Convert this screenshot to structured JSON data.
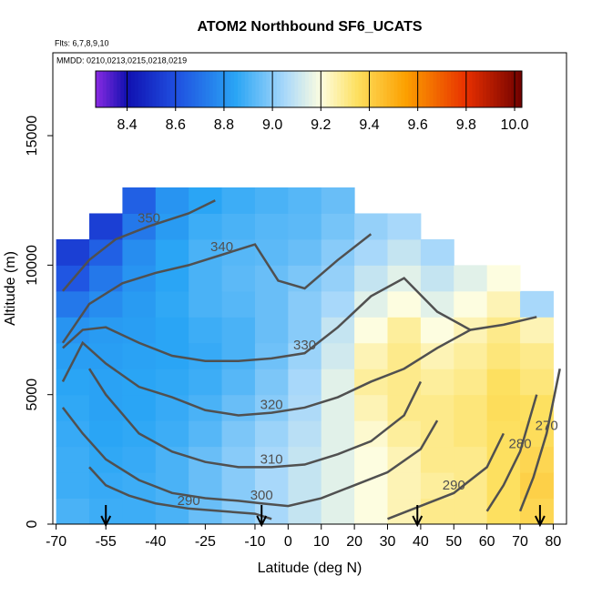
{
  "chart_data": {
    "type": "heatmap",
    "title": "ATOM2 Northbound SF6_UCATS",
    "annotations": [
      "Flts: 6,7,8,9,10",
      "MMDD: 0210,0213,0215,0218,0219"
    ],
    "x_label": "Latitude (deg N)",
    "y_label": "Altitude (m)",
    "xlim": [
      -71,
      84
    ],
    "ylim": [
      0,
      18200
    ],
    "xticks": [
      -70,
      -55,
      -40,
      -25,
      -10,
      0,
      10,
      20,
      30,
      40,
      50,
      60,
      70,
      80
    ],
    "yticks": [
      0,
      5000,
      10000,
      15000
    ],
    "x": [
      -65,
      -55,
      -45,
      -35,
      -25,
      -15,
      -5,
      5,
      15,
      25,
      35,
      45,
      55,
      65,
      75
    ],
    "y": [
      500,
      1500,
      2500,
      3500,
      4500,
      5500,
      6500,
      7500,
      8500,
      9500,
      10500,
      11500,
      12500
    ],
    "z": [
      [
        8.9,
        8.88,
        8.88,
        8.9,
        8.95,
        9.0,
        9.05,
        9.1,
        9.15,
        9.2,
        9.25,
        9.3,
        9.3,
        9.35,
        9.38
      ],
      [
        8.88,
        8.87,
        8.88,
        8.9,
        8.95,
        9.0,
        9.05,
        9.1,
        9.15,
        9.2,
        9.25,
        9.28,
        9.3,
        9.35,
        9.4
      ],
      [
        8.88,
        8.86,
        8.87,
        8.9,
        8.95,
        9.0,
        9.05,
        9.1,
        9.15,
        9.2,
        9.25,
        9.3,
        9.3,
        9.35,
        9.38
      ],
      [
        8.87,
        8.85,
        8.86,
        8.88,
        8.92,
        8.98,
        9.03,
        9.08,
        9.15,
        9.22,
        9.28,
        9.3,
        9.32,
        9.35,
        9.36
      ],
      [
        8.86,
        8.84,
        8.85,
        8.87,
        8.9,
        8.95,
        9.0,
        9.06,
        9.15,
        9.25,
        9.3,
        9.3,
        9.32,
        9.36,
        9.35
      ],
      [
        8.85,
        8.84,
        8.85,
        8.86,
        8.88,
        8.92,
        8.98,
        9.05,
        9.15,
        9.28,
        9.3,
        9.28,
        9.3,
        9.35,
        9.32
      ],
      [
        8.83,
        8.83,
        8.84,
        8.85,
        8.87,
        8.9,
        8.96,
        9.03,
        9.12,
        9.25,
        9.3,
        9.25,
        9.28,
        9.32,
        9.3
      ],
      [
        8.8,
        8.82,
        8.83,
        8.85,
        8.88,
        8.9,
        8.95,
        9.0,
        9.1,
        9.2,
        9.28,
        9.2,
        9.25,
        9.3,
        9.25
      ],
      [
        8.72,
        8.78,
        8.82,
        8.86,
        8.9,
        8.92,
        8.95,
        9.0,
        9.05,
        9.15,
        9.2,
        9.15,
        9.2,
        9.25,
        9.05
      ],
      [
        8.62,
        8.72,
        8.8,
        8.85,
        8.9,
        8.93,
        8.95,
        8.98,
        9.02,
        9.1,
        9.15,
        9.1,
        9.15,
        9.2,
        null
      ],
      [
        8.55,
        8.65,
        8.78,
        8.85,
        8.9,
        8.92,
        8.93,
        8.95,
        9.0,
        9.05,
        9.1,
        9.05,
        null,
        null,
        null
      ],
      [
        null,
        8.55,
        8.72,
        8.82,
        8.88,
        8.9,
        8.92,
        8.93,
        8.97,
        9.02,
        9.05,
        null,
        null,
        null,
        null
      ],
      [
        null,
        null,
        8.65,
        8.8,
        8.85,
        8.88,
        8.9,
        8.92,
        8.95,
        null,
        null,
        null,
        null,
        null,
        null
      ]
    ],
    "colorlim": [
      8.27,
      10.03
    ],
    "colorbar_ticks": [
      8.4,
      8.6,
      8.8,
      9.0,
      9.2,
      9.4,
      9.6,
      9.8,
      10.0
    ],
    "colorbar_tick_labels": [
      "8.4",
      "8.6",
      "8.8",
      "9.0",
      "9.2",
      "9.4",
      "9.6",
      "9.8",
      "10.0"
    ],
    "colorscale": [
      [
        8.27,
        "#8a2be2"
      ],
      [
        8.4,
        "#1010b0"
      ],
      [
        8.6,
        "#1f4fe0"
      ],
      [
        8.85,
        "#2aa5f5"
      ],
      [
        9.05,
        "#a8d8fa"
      ],
      [
        9.2,
        "#fdfde0"
      ],
      [
        9.35,
        "#fde060"
      ],
      [
        9.55,
        "#fca000"
      ],
      [
        9.8,
        "#e83000"
      ],
      [
        10.03,
        "#700000"
      ]
    ],
    "contour_color": "#505050",
    "contours": [
      {
        "level": 350,
        "x": [
          -68,
          -60,
          -52,
          -42,
          -30,
          -22
        ],
        "y": [
          9000,
          10200,
          11000,
          11500,
          12000,
          12500
        ]
      },
      {
        "level": 340,
        "x": [
          -68,
          -60,
          -50,
          -40,
          -30,
          -20,
          -10,
          -3,
          5,
          15,
          25
        ],
        "y": [
          7000,
          8500,
          9300,
          9700,
          10000,
          10400,
          10800,
          9400,
          9100,
          10200,
          11200
        ]
      },
      {
        "level": 330,
        "x": [
          -68,
          -62,
          -55,
          -45,
          -35,
          -25,
          -15,
          -5,
          5,
          15,
          25,
          35,
          45,
          55,
          65,
          75
        ],
        "y": [
          6800,
          7500,
          7600,
          7000,
          6500,
          6300,
          6300,
          6400,
          6600,
          7600,
          8800,
          9500,
          8200,
          7500,
          7700,
          8000
        ]
      },
      {
        "level": 320,
        "x": [
          -68,
          -62,
          -55,
          -45,
          -35,
          -25,
          -15,
          -5,
          5,
          15,
          25,
          35,
          45,
          55
        ],
        "y": [
          5500,
          7000,
          6200,
          5300,
          4900,
          4400,
          4200,
          4300,
          4500,
          4900,
          5500,
          6000,
          6800,
          7500
        ]
      },
      {
        "level": 310,
        "x": [
          -60,
          -55,
          -45,
          -35,
          -25,
          -15,
          -5,
          5,
          15,
          25,
          35,
          40
        ],
        "y": [
          6000,
          5000,
          3500,
          2800,
          2400,
          2200,
          2200,
          2300,
          2700,
          3200,
          4200,
          5500
        ]
      },
      {
        "level": 300,
        "x": [
          -68,
          -62,
          -55,
          -45,
          -35,
          -25,
          -15,
          -8,
          0,
          10,
          20,
          30,
          40,
          45
        ],
        "y": [
          4500,
          3500,
          2500,
          1700,
          1200,
          1000,
          900,
          800,
          700,
          1000,
          1500,
          2000,
          2900,
          4000
        ]
      },
      {
        "level": 290,
        "x": [
          -60,
          -55,
          -48,
          -40,
          -30,
          -20,
          -10,
          -5
        ],
        "y": [
          2200,
          1500,
          1100,
          800,
          600,
          500,
          400,
          200
        ]
      },
      {
        "level": 290,
        "x": [
          30,
          40,
          50,
          60,
          65
        ],
        "y": [
          200,
          700,
          1200,
          2200,
          3500
        ]
      },
      {
        "level": 280,
        "x": [
          60,
          65,
          70,
          75
        ],
        "y": [
          500,
          1500,
          2800,
          5000
        ]
      },
      {
        "level": 270,
        "x": [
          70,
          74,
          78,
          82
        ],
        "y": [
          500,
          1800,
          3500,
          6000
        ]
      }
    ],
    "arrows_x": [
      -55,
      -8,
      39,
      76
    ]
  }
}
